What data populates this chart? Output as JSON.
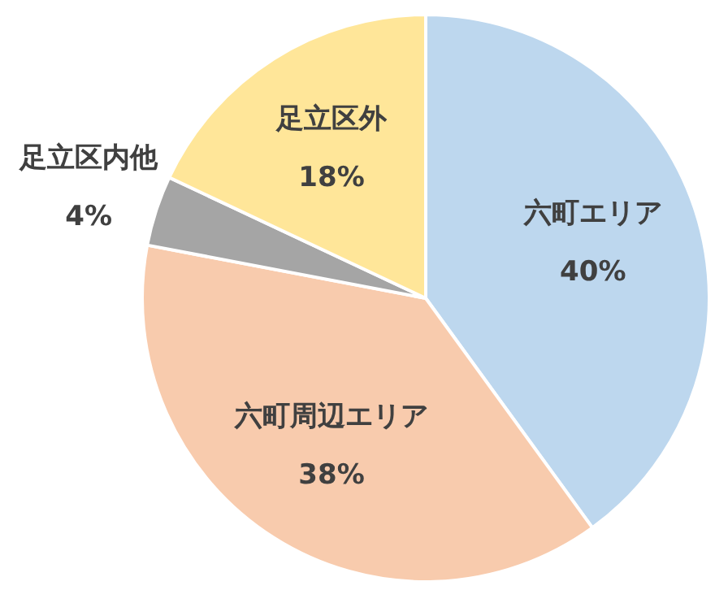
{
  "chart_data": {
    "type": "pie",
    "categories": [
      "六町エリア",
      "六町周辺エリア",
      "足立区内他",
      "足立区外"
    ],
    "values": [
      40,
      38,
      4,
      18
    ],
    "colors": [
      "#bdd7ee",
      "#f8cbad",
      "#a5a5a5",
      "#ffe699"
    ],
    "value_labels": [
      "40%",
      "38%",
      "4%",
      "18%"
    ],
    "legend": false
  }
}
